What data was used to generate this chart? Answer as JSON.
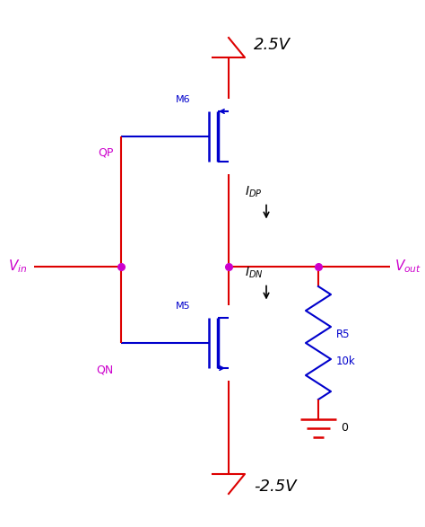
{
  "bg_color": "#ffffff",
  "red": "#dd0000",
  "blue": "#0000cc",
  "magenta": "#cc00cc",
  "figsize": [
    4.74,
    5.87
  ],
  "dpi": 100,
  "labels": {
    "vdd": "2.5V",
    "vss": "-2.5V",
    "vin": "$V_{in}$",
    "vout": "$V_{out}$",
    "idp": "$I_{DP}$",
    "idn": "$I_{DN}$",
    "m6": "M6",
    "m5": "M5",
    "qp": "QP",
    "qn": "QN",
    "r5": "R5",
    "r5val": "10k",
    "gnd": "0"
  }
}
